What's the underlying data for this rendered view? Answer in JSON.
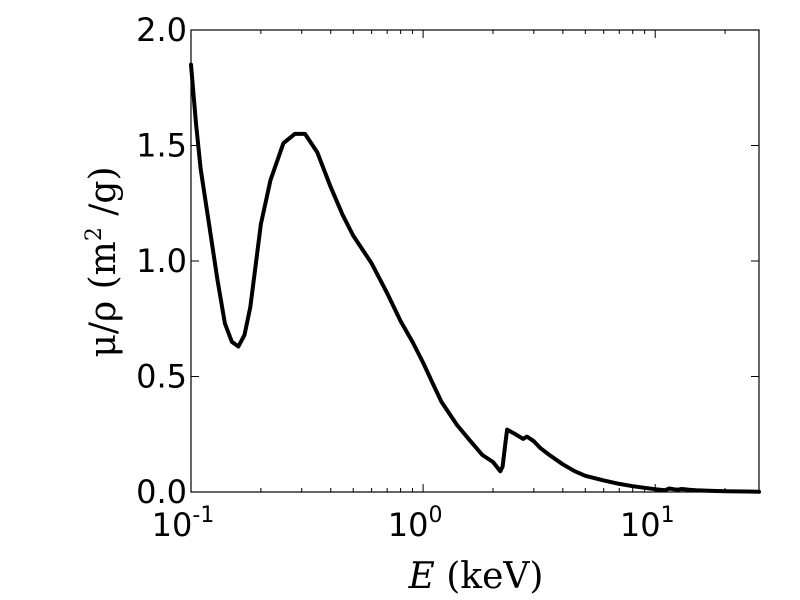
{
  "chart_data": {
    "type": "line",
    "title": "",
    "xlabel": {
      "italic": "E",
      "rest": "(keV)"
    },
    "ylabel": {
      "prefix": "μ/ρ (m",
      "sup": "2",
      "suffix": " /g)"
    },
    "xscale": "log",
    "xlim": [
      0.1,
      28
    ],
    "ylim": [
      0.0,
      2.0
    ],
    "grid": false,
    "legend": "none",
    "color": "#000000",
    "xticks": [
      {
        "base": "10",
        "exp": "-1",
        "value": 0.1
      },
      {
        "base": "10",
        "exp": "0",
        "value": 1
      },
      {
        "base": "10",
        "exp": "1",
        "value": 10
      }
    ],
    "yticks": [
      {
        "label": "0.0",
        "value": 0.0
      },
      {
        "label": "0.5",
        "value": 0.5
      },
      {
        "label": "1.0",
        "value": 1.0
      },
      {
        "label": "1.5",
        "value": 1.5
      },
      {
        "label": "2.0",
        "value": 2.0
      }
    ],
    "series": [
      {
        "x": [
          0.1,
          0.105,
          0.11,
          0.12,
          0.13,
          0.14,
          0.15,
          0.16,
          0.17,
          0.18,
          0.2,
          0.22,
          0.25,
          0.28,
          0.31,
          0.35,
          0.4,
          0.45,
          0.5,
          0.6,
          0.7,
          0.8,
          0.9,
          1.0,
          1.1,
          1.2,
          1.4,
          1.6,
          1.8,
          2.0,
          2.15,
          2.2,
          2.25,
          2.3,
          2.5,
          2.7,
          2.8,
          3.0,
          3.2,
          3.5,
          4.0,
          4.5,
          5.0,
          6.0,
          7.0,
          8.0,
          9.0,
          10.0,
          11.0,
          11.5,
          12.0,
          12.5,
          13.0,
          14.0,
          15.0,
          17.0,
          20.0,
          25.0,
          28.0
        ],
        "y": [
          1.85,
          1.6,
          1.4,
          1.15,
          0.92,
          0.73,
          0.65,
          0.63,
          0.68,
          0.8,
          1.16,
          1.35,
          1.51,
          1.55,
          1.55,
          1.47,
          1.32,
          1.2,
          1.11,
          0.99,
          0.86,
          0.74,
          0.65,
          0.56,
          0.47,
          0.39,
          0.29,
          0.22,
          0.16,
          0.13,
          0.09,
          0.11,
          0.19,
          0.27,
          0.25,
          0.23,
          0.24,
          0.22,
          0.19,
          0.16,
          0.12,
          0.09,
          0.07,
          0.05,
          0.035,
          0.025,
          0.018,
          0.012,
          0.008,
          0.015,
          0.012,
          0.01,
          0.013,
          0.01,
          0.008,
          0.005,
          0.003,
          0.002,
          0.001
        ]
      }
    ]
  }
}
